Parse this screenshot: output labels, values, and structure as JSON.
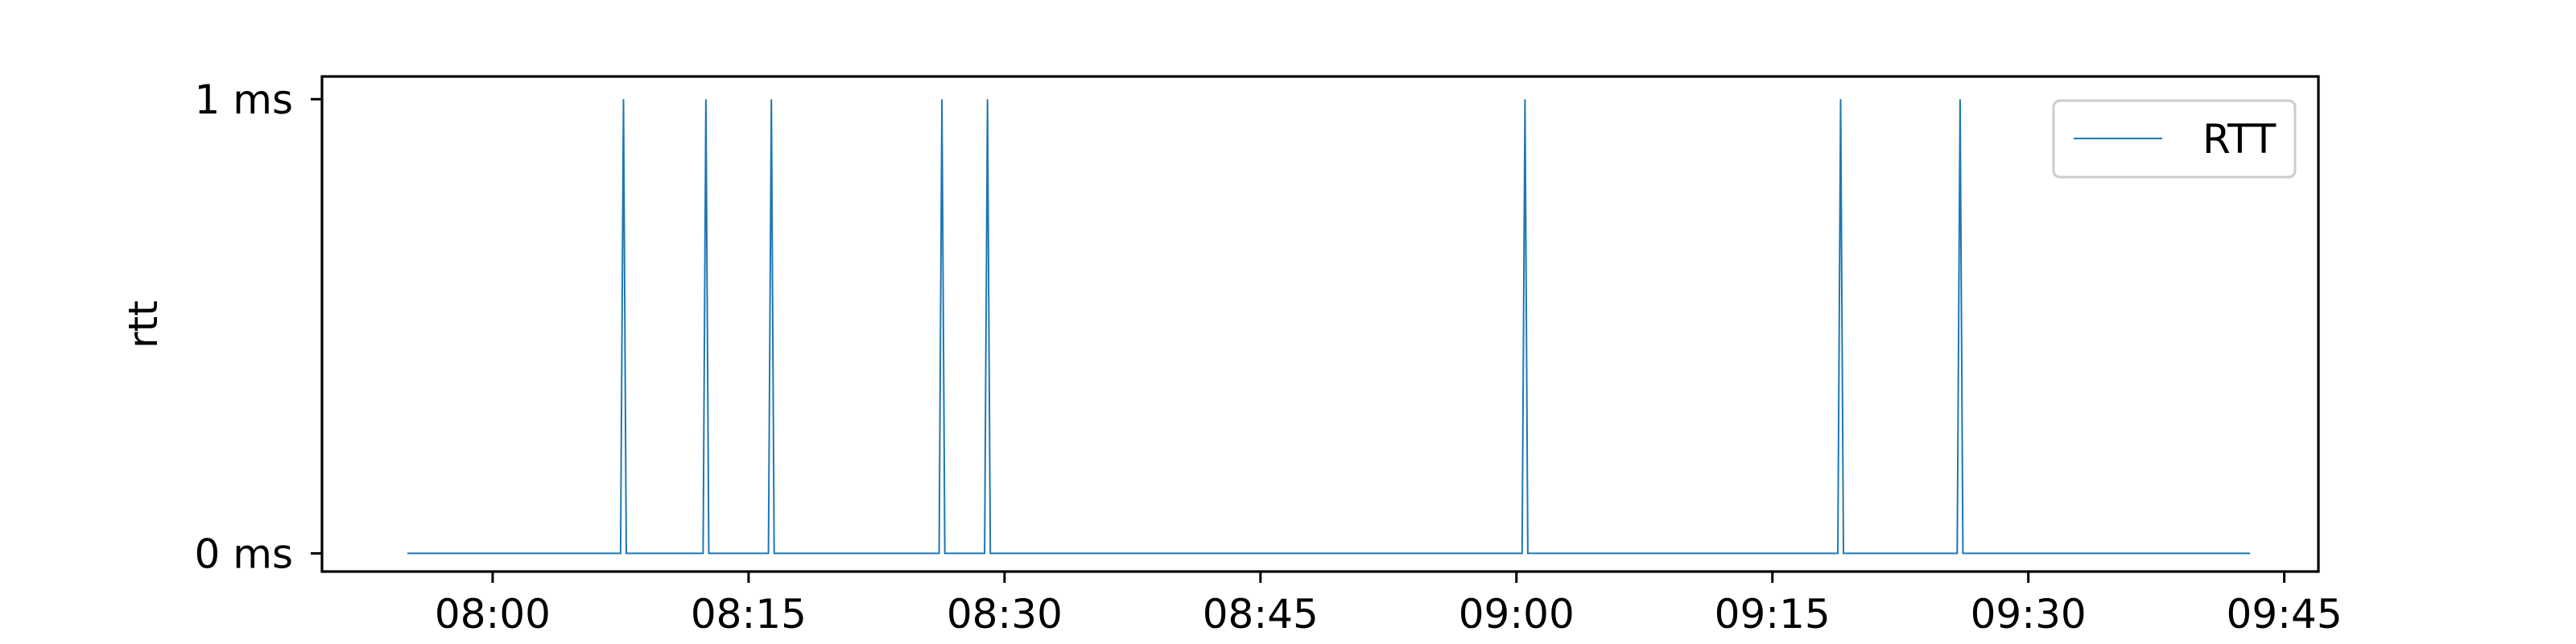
{
  "chart_data": {
    "type": "line",
    "title": "",
    "xlabel": "",
    "ylabel": "rtt",
    "x_ticks": [
      "08:00",
      "08:15",
      "08:30",
      "08:45",
      "09:00",
      "09:15",
      "09:30",
      "09:45"
    ],
    "y_ticks": [
      "0 ms",
      "1 ms"
    ],
    "xlim": [
      "07:50:00",
      "09:47:00"
    ],
    "ylim": [
      -0.04,
      1.05
    ],
    "grid": false,
    "legend": "top-right",
    "series": [
      {
        "name": "RTT",
        "color": "#1f77b4",
        "x": [
          "07:55:00",
          "08:07:30",
          "08:07:40",
          "08:07:50",
          "08:12:20",
          "08:12:30",
          "08:12:40",
          "08:16:10",
          "08:16:20",
          "08:16:30",
          "08:26:10",
          "08:26:20",
          "08:26:30",
          "08:28:50",
          "08:29:00",
          "08:29:10",
          "09:00:20",
          "09:00:30",
          "09:00:40",
          "09:18:50",
          "09:19:00",
          "09:19:10",
          "09:25:50",
          "09:26:00",
          "09:26:10",
          "09:43:00"
        ],
        "y": [
          0,
          0,
          1,
          0,
          0,
          1,
          0,
          0,
          1,
          0,
          0,
          1,
          0,
          0,
          1,
          0,
          0,
          1,
          0,
          0,
          1,
          0,
          0,
          1,
          0,
          0
        ]
      }
    ]
  }
}
